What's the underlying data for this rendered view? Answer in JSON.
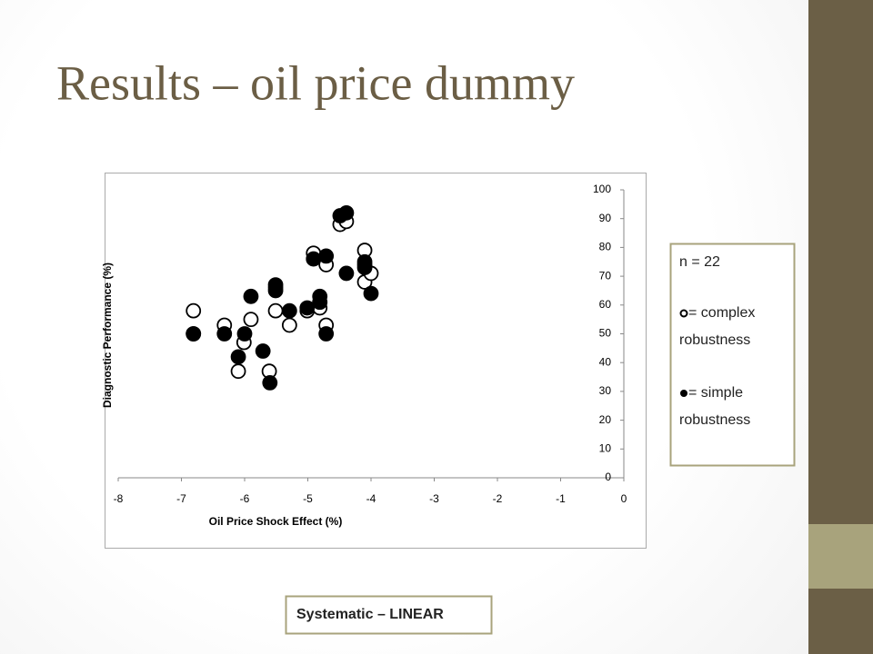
{
  "slide": {
    "title": "Results – oil price dummy",
    "n_label": "n = 22",
    "caption": "Systematic – LINEAR"
  },
  "chart_data": {
    "type": "scatter",
    "x_label": "Oil Price Shock Effect (%)",
    "y_label": "Diagnostic Performance (%)",
    "xlim": [
      -8,
      0
    ],
    "xticks": [
      -8,
      -7,
      -6,
      -5,
      -4,
      -3,
      -2,
      -1,
      0
    ],
    "ylim": [
      0,
      100
    ],
    "yticks": [
      0,
      10,
      20,
      30,
      40,
      50,
      60,
      70,
      80,
      90,
      100
    ],
    "series": [
      {
        "name": "= complex robustness",
        "color": "#ffffff",
        "filled": false,
        "x": [
          -6.81,
          -6.81,
          -6.32,
          -5.9,
          -6.01,
          -6.1,
          -5.61,
          -5.51,
          -5.51,
          -5.29,
          -5.01,
          -4.91,
          -4.71,
          -4.49,
          -4.39,
          -4.81,
          -4.81,
          -4.71,
          -4.1,
          -4.1,
          -4.1,
          -4.0
        ],
        "values": [
          58,
          50,
          53,
          55,
          47,
          37,
          37,
          58,
          66,
          53,
          58,
          78,
          74,
          88,
          89,
          59,
          61,
          53,
          79,
          74,
          68,
          71
        ]
      },
      {
        "name": "= simple robustness",
        "color": "#000000",
        "filled": true,
        "x": [
          -6.81,
          -6.32,
          -6.1,
          -6.0,
          -5.9,
          -5.71,
          -5.6,
          -5.51,
          -5.51,
          -5.29,
          -5.01,
          -4.91,
          -4.81,
          -4.81,
          -4.71,
          -4.71,
          -4.49,
          -4.39,
          -4.39,
          -4.1,
          -4.1,
          -4.0
        ],
        "values": [
          50,
          50,
          42,
          50,
          63,
          44,
          33,
          65,
          67,
          58,
          59,
          76,
          63,
          61,
          77,
          50,
          91,
          92,
          71,
          75,
          73,
          64
        ]
      }
    ]
  }
}
